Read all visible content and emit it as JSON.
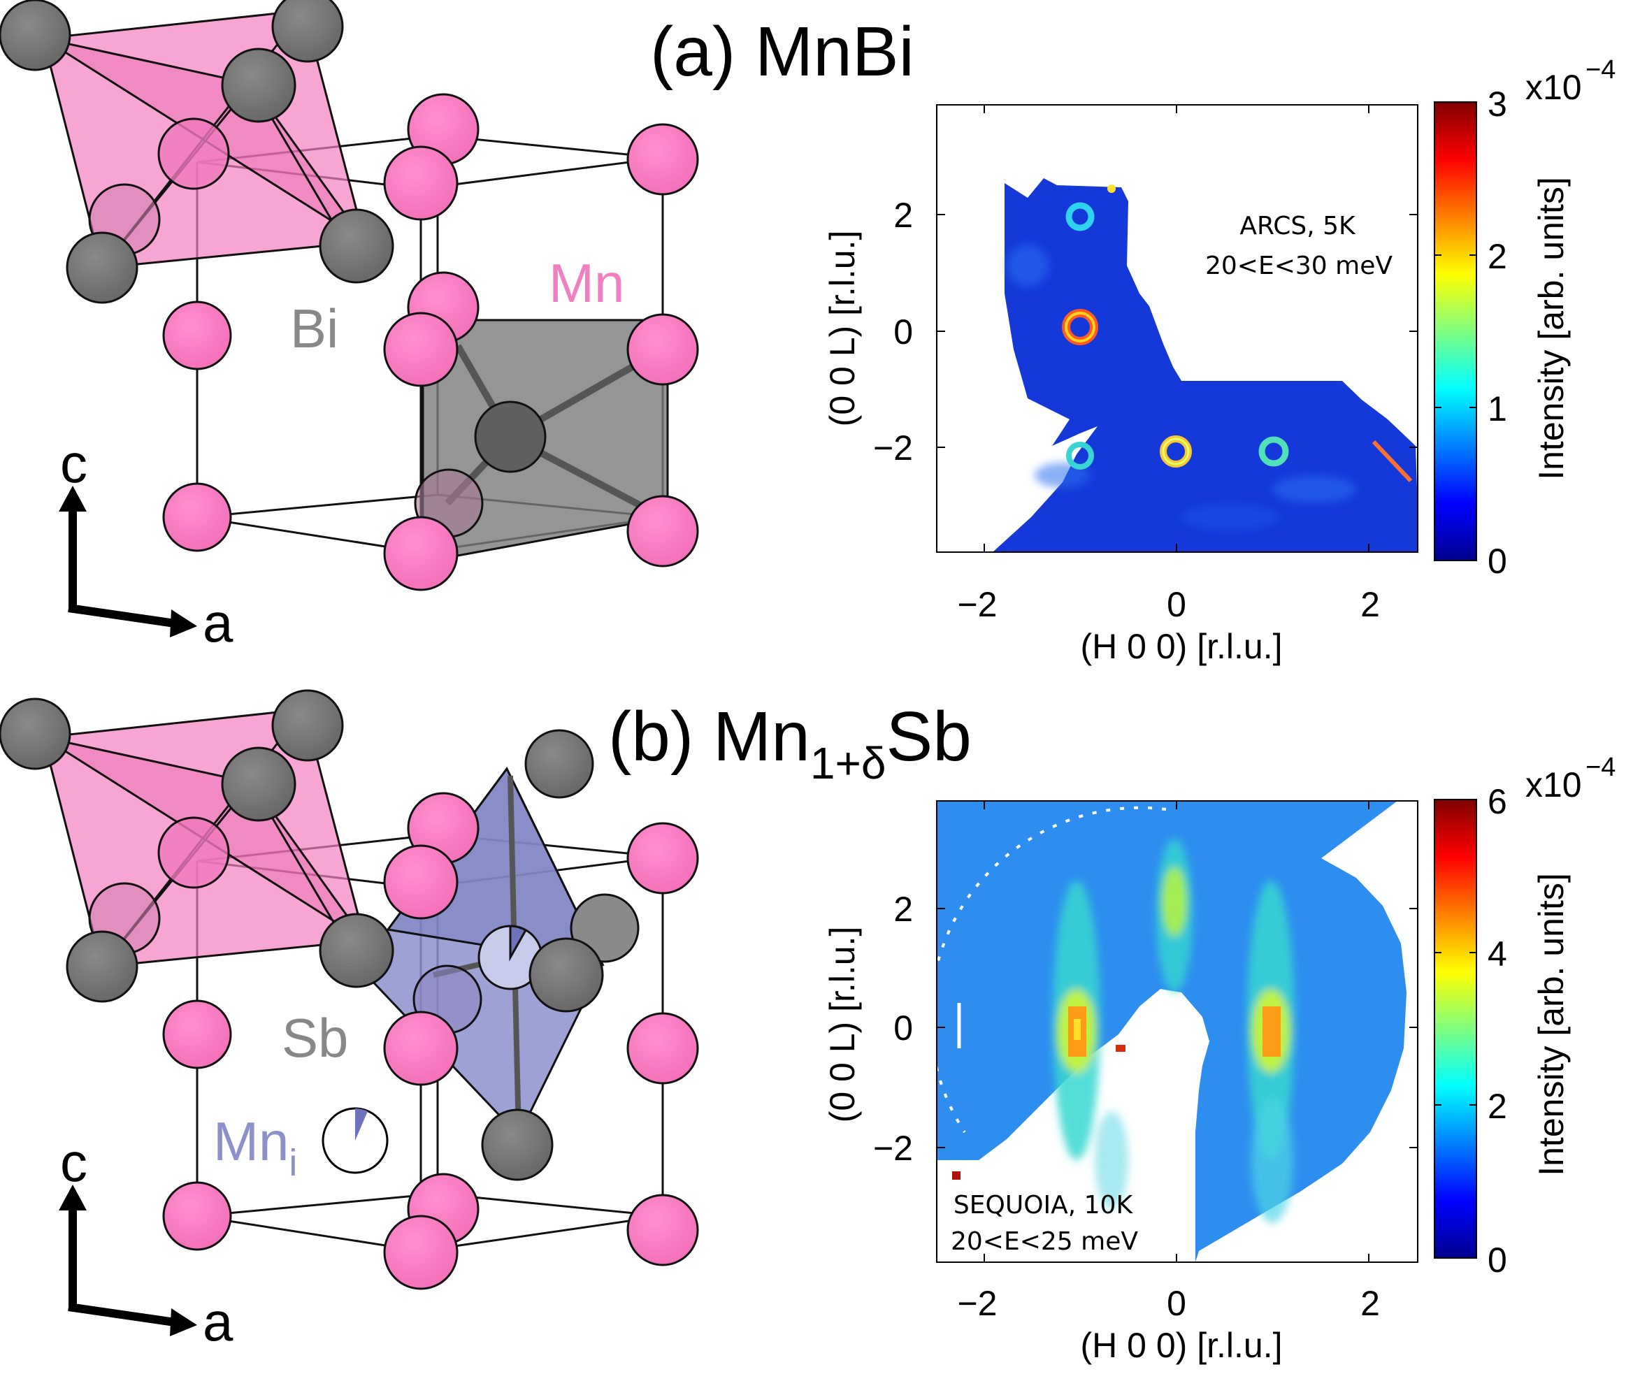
{
  "panel_a": {
    "title": "(a) MnBi",
    "structure_labels": {
      "bi": "Bi",
      "mn": "Mn",
      "axis_c": "c",
      "axis_a": "a"
    },
    "map": {
      "ylabel": "(0 0 L) [r.l.u.]",
      "xlabel": "(H 0 0) [r.l.u.]",
      "annotation_line1": "ARCS, 5K",
      "annotation_line2": "20<E<30 meV",
      "xticks": [
        "−2",
        "0",
        "2"
      ],
      "yticks": [
        "2",
        "0",
        "−2"
      ],
      "colorbar_label": "Intensity [arb. units]",
      "colorbar_ticks": [
        "0",
        "1",
        "2",
        "3"
      ],
      "colorbar_exponent_base": "x10",
      "colorbar_exponent": "−4"
    }
  },
  "panel_b": {
    "title_main": "(b) Mn",
    "title_sub": "1+δ",
    "title_end": "Sb",
    "structure_labels": {
      "sb": "Sb",
      "mni_main": "Mn",
      "mni_sub": "i",
      "axis_c": "c",
      "axis_a": "a"
    },
    "map": {
      "ylabel": "(0 0 L) [r.l.u.]",
      "xlabel": "(H 0 0) [r.l.u.]",
      "annotation_line1": "SEQUOIA, 10K",
      "annotation_line2": "20<E<25 meV",
      "xticks": [
        "−2",
        "0",
        "2"
      ],
      "yticks": [
        "2",
        "0",
        "−2"
      ],
      "colorbar_label": "Intensity [arb. units]",
      "colorbar_ticks": [
        "0",
        "2",
        "4",
        "6"
      ],
      "colorbar_exponent_base": "x10",
      "colorbar_exponent": "−4"
    }
  },
  "chart_data": [
    {
      "type": "heatmap",
      "title": "(a) MnBi",
      "xlabel": "(H 0 0) [r.l.u.]",
      "ylabel": "(0 0 L) [r.l.u.]",
      "xlim": [
        -2.5,
        2.5
      ],
      "ylim": [
        -3.8,
        3.8
      ],
      "colorbar": {
        "label": "Intensity [arb. units]",
        "range": [
          0,
          0.0003
        ]
      },
      "annotation": "ARCS, 5K 20<E<30 meV",
      "peaks": [
        {
          "H": -1,
          "L": 2,
          "intensity": 0.00015
        },
        {
          "H": -1,
          "L": 0,
          "intensity": 0.0003
        },
        {
          "H": -1,
          "L": -2,
          "intensity": 0.00015
        },
        {
          "H": 0,
          "L": -2,
          "intensity": 0.00025
        },
        {
          "H": 1,
          "L": -2,
          "intensity": 0.00015
        }
      ]
    },
    {
      "type": "heatmap",
      "title": "(b) Mn1+δSb",
      "xlabel": "(H 0 0) [r.l.u.]",
      "ylabel": "(0 0 L) [r.l.u.]",
      "xlim": [
        -2.5,
        2.5
      ],
      "ylim": [
        -3.8,
        3.8
      ],
      "colorbar": {
        "label": "Intensity [arb. units]",
        "range": [
          0,
          0.0006
        ]
      },
      "annotation": "SEQUOIA, 10K 20<E<25 meV",
      "features": [
        {
          "H": -1,
          "L": 0,
          "intensity": 0.00045,
          "shape": "vertical streak"
        },
        {
          "H": 0,
          "L": 2,
          "intensity": 0.0003,
          "shape": "vertical streak"
        },
        {
          "H": 1,
          "L": 0,
          "intensity": 0.00045,
          "shape": "vertical streak"
        }
      ]
    }
  ]
}
